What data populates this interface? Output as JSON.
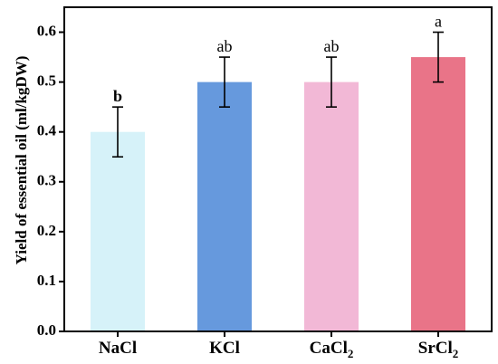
{
  "chart_data": {
    "type": "bar",
    "categories": [
      "NaCl",
      "KCl",
      "CaCl",
      "SrCl"
    ],
    "category_subscripts": [
      "",
      "",
      "2",
      "2"
    ],
    "values": [
      0.4,
      0.5,
      0.5,
      0.55
    ],
    "errors": [
      0.05,
      0.05,
      0.05,
      0.05
    ],
    "significance": [
      "b",
      "ab",
      "ab",
      "a"
    ],
    "colors": [
      "#d6f2f9",
      "#6699dd",
      "#f2b8d6",
      "#e97488"
    ],
    "ylabel": "Yield of essential oil (ml/kgDW)",
    "ylim": [
      0.0,
      0.65
    ],
    "yticks": [
      0.0,
      0.1,
      0.2,
      0.3,
      0.4,
      0.5,
      0.6
    ],
    "ytick_labels": [
      "0.0",
      "0.1",
      "0.2",
      "0.3",
      "0.4",
      "0.5",
      "0.6"
    ],
    "grid": false,
    "legend": "none"
  }
}
